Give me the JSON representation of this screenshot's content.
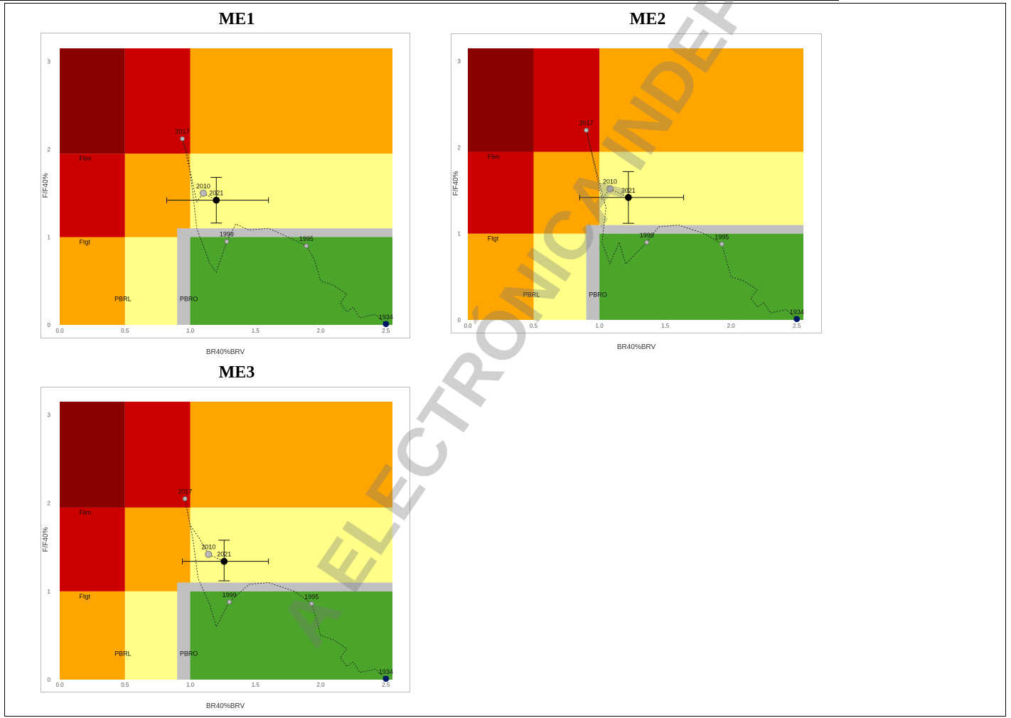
{
  "watermark": "A ELECTRÓNICA INDEP",
  "colors": {
    "darkred": "#8b0000",
    "red": "#cc0000",
    "orange": "#ffa500",
    "yellow": "#ffff88",
    "green": "#4aa52a",
    "grey": "#c0c0c0"
  },
  "chart_data": [
    {
      "type": "scatter",
      "title": "ME1",
      "xlabel": "BR40%BRV",
      "ylabel": "F/F40%",
      "xlim": [
        0,
        2.55
      ],
      "ylim": [
        0,
        3.15
      ],
      "xticks": [
        "0.0",
        "0.5",
        "1.0",
        "1.5",
        "2.0",
        "2.5"
      ],
      "yticks": [
        "0",
        "1",
        "2",
        "3"
      ],
      "reference_labels": {
        "flim": "Flim",
        "ftgt": "Ftgt",
        "pbrl": "PBRL",
        "pbro": "PBRO"
      },
      "points": [
        {
          "year": "2017",
          "x": 0.94,
          "y": 2.12
        },
        {
          "year": "2010",
          "x": 1.1,
          "y": 1.5
        },
        {
          "year": "2021",
          "x": 1.2,
          "y": 1.42
        },
        {
          "year": "1999",
          "x": 1.28,
          "y": 0.95
        },
        {
          "year": "1995",
          "x": 1.89,
          "y": 0.9
        },
        {
          "year": "1934",
          "x": 2.5,
          "y": 0.01
        }
      ],
      "trajectory": [
        [
          2.5,
          0.01
        ],
        [
          2.42,
          0.12
        ],
        [
          2.3,
          0.08
        ],
        [
          2.25,
          0.2
        ],
        [
          2.2,
          0.15
        ],
        [
          2.15,
          0.25
        ],
        [
          2.2,
          0.35
        ],
        [
          2.1,
          0.45
        ],
        [
          2.0,
          0.5
        ],
        [
          1.95,
          0.75
        ],
        [
          1.89,
          0.9
        ],
        [
          1.75,
          1.0
        ],
        [
          1.6,
          1.1
        ],
        [
          1.45,
          1.08
        ],
        [
          1.35,
          1.15
        ],
        [
          1.28,
          0.95
        ],
        [
          1.2,
          0.6
        ],
        [
          1.15,
          0.7
        ],
        [
          1.05,
          1.1
        ],
        [
          1.02,
          1.5
        ],
        [
          0.98,
          1.95
        ],
        [
          0.94,
          2.12
        ],
        [
          1.0,
          1.75
        ],
        [
          1.05,
          1.4
        ],
        [
          1.1,
          1.5
        ],
        [
          1.2,
          1.42
        ]
      ],
      "errorbar": {
        "x": 1.2,
        "y": 1.42,
        "xmin": 0.82,
        "xmax": 1.6,
        "ymin": 1.16,
        "ymax": 1.68
      }
    },
    {
      "type": "scatter",
      "title": "ME2",
      "xlabel": "BR40%BRV",
      "ylabel": "F/F40%",
      "xlim": [
        0,
        2.55
      ],
      "ylim": [
        0,
        3.15
      ],
      "xticks": [
        "0.0",
        "0.5",
        "1.0",
        "1.5",
        "2.0",
        "2.5"
      ],
      "yticks": [
        "0",
        "1",
        "2",
        "3"
      ],
      "reference_labels": {
        "flim": "Flim",
        "ftgt": "Ftgt",
        "pbrl": "PBRL",
        "pbro": "PBRO"
      },
      "points": [
        {
          "year": "2017",
          "x": 0.9,
          "y": 2.2
        },
        {
          "year": "2010",
          "x": 1.08,
          "y": 1.52
        },
        {
          "year": "2021",
          "x": 1.22,
          "y": 1.42
        },
        {
          "year": "1999",
          "x": 1.36,
          "y": 0.9
        },
        {
          "year": "1995",
          "x": 1.93,
          "y": 0.88
        },
        {
          "year": "1934",
          "x": 2.5,
          "y": 0.01
        }
      ],
      "trajectory": [
        [
          2.5,
          0.01
        ],
        [
          2.42,
          0.12
        ],
        [
          2.3,
          0.08
        ],
        [
          2.25,
          0.2
        ],
        [
          2.2,
          0.15
        ],
        [
          2.15,
          0.25
        ],
        [
          2.2,
          0.35
        ],
        [
          2.1,
          0.45
        ],
        [
          2.0,
          0.5
        ],
        [
          1.96,
          0.72
        ],
        [
          1.93,
          0.88
        ],
        [
          1.8,
          1.0
        ],
        [
          1.6,
          1.1
        ],
        [
          1.45,
          1.08
        ],
        [
          1.36,
          0.9
        ],
        [
          1.2,
          0.65
        ],
        [
          1.15,
          0.9
        ],
        [
          1.08,
          0.65
        ],
        [
          1.02,
          0.9
        ],
        [
          1.05,
          1.3
        ],
        [
          0.95,
          1.9
        ],
        [
          0.9,
          2.2
        ],
        [
          0.96,
          1.8
        ],
        [
          1.02,
          1.4
        ],
        [
          1.08,
          1.52
        ],
        [
          1.22,
          1.42
        ]
      ],
      "errorbar": {
        "x": 1.22,
        "y": 1.42,
        "xmin": 0.85,
        "xmax": 1.64,
        "ymin": 1.12,
        "ymax": 1.72
      }
    },
    {
      "type": "scatter",
      "title": "ME3",
      "xlabel": "BR40%BRV",
      "ylabel": "F/F40%",
      "xlim": [
        0,
        2.55
      ],
      "ylim": [
        0,
        3.15
      ],
      "xticks": [
        "0.0",
        "0.5",
        "1.0",
        "1.5",
        "2.0",
        "2.5"
      ],
      "yticks": [
        "0",
        "1",
        "2",
        "3"
      ],
      "reference_labels": {
        "flim": "Flim",
        "ftgt": "Ftgt",
        "pbrl": "PBRL",
        "pbro": "PBRO"
      },
      "points": [
        {
          "year": "2017",
          "x": 0.96,
          "y": 2.05
        },
        {
          "year": "2010",
          "x": 1.14,
          "y": 1.42
        },
        {
          "year": "2021",
          "x": 1.26,
          "y": 1.34
        },
        {
          "year": "1999",
          "x": 1.3,
          "y": 0.88
        },
        {
          "year": "1995",
          "x": 1.93,
          "y": 0.86
        },
        {
          "year": "1934",
          "x": 2.5,
          "y": 0.01
        }
      ],
      "trajectory": [
        [
          2.5,
          0.01
        ],
        [
          2.42,
          0.12
        ],
        [
          2.3,
          0.08
        ],
        [
          2.25,
          0.2
        ],
        [
          2.2,
          0.15
        ],
        [
          2.15,
          0.25
        ],
        [
          2.2,
          0.35
        ],
        [
          2.1,
          0.45
        ],
        [
          2.0,
          0.5
        ],
        [
          1.96,
          0.72
        ],
        [
          1.93,
          0.86
        ],
        [
          1.8,
          1.0
        ],
        [
          1.6,
          1.1
        ],
        [
          1.45,
          1.08
        ],
        [
          1.3,
          0.88
        ],
        [
          1.2,
          0.6
        ],
        [
          1.15,
          0.85
        ],
        [
          1.06,
          1.15
        ],
        [
          1.02,
          1.6
        ],
        [
          0.98,
          1.9
        ],
        [
          0.96,
          2.05
        ],
        [
          1.0,
          1.75
        ],
        [
          1.07,
          1.6
        ],
        [
          1.14,
          1.42
        ],
        [
          1.26,
          1.34
        ]
      ],
      "errorbar": {
        "x": 1.26,
        "y": 1.34,
        "xmin": 0.94,
        "xmax": 1.6,
        "ymin": 1.12,
        "ymax": 1.58
      }
    }
  ]
}
